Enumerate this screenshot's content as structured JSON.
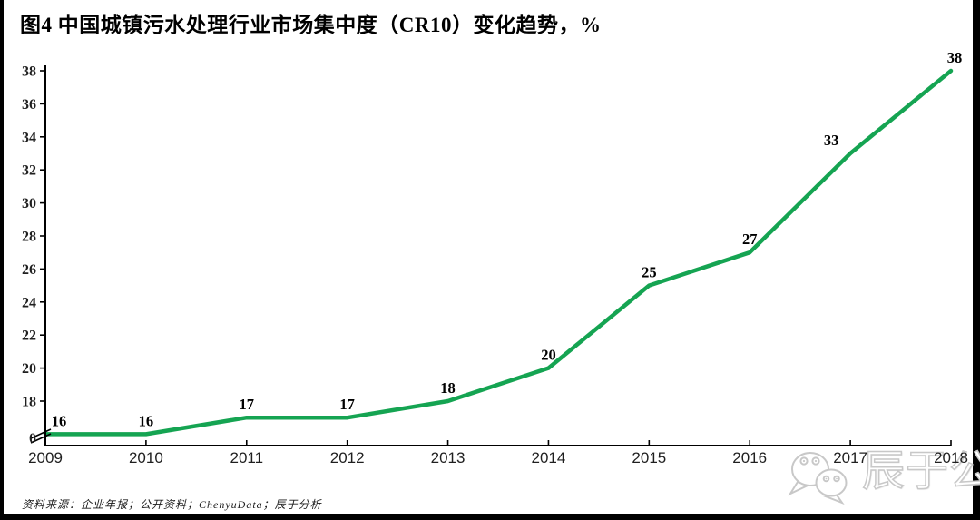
{
  "header": {
    "title": "图4 中国城镇污水处理行业市场集中度（CR10）变化趋势，%"
  },
  "chart_data": {
    "type": "line",
    "title": "图4 中国城镇污水处理行业市场集中度（CR10）变化趋势，%",
    "categories": [
      "2009",
      "2010",
      "2011",
      "2012",
      "2013",
      "2014",
      "2015",
      "2016",
      "2017",
      "2018"
    ],
    "series": [
      {
        "name": "CR10",
        "values": [
          16,
          16,
          17,
          17,
          18,
          20,
          25,
          27,
          33,
          38
        ]
      }
    ],
    "data_labels": [
      "16",
      "16",
      "17",
      "17",
      "18",
      "20",
      "25",
      "27",
      "33",
      "38"
    ],
    "unit": "%",
    "y_ticks": [
      0,
      18,
      20,
      22,
      24,
      26,
      28,
      30,
      32,
      34,
      36,
      38
    ],
    "ylim": [
      0,
      38
    ],
    "axis_break_above_zero": true,
    "grid": false,
    "legend": "none",
    "line_color": "#15A452",
    "axis_color": "#000000",
    "tick_label_color": "#1f1f1f",
    "data_label_color": "#000000"
  },
  "footer": {
    "source_note": "资料来源：企业年报；公开资料；ChenyuData；辰于分析"
  },
  "watermark": {
    "text": "辰于公司",
    "icon": "wechat-chat-bubbles-icon",
    "color": "#c8c8c8"
  }
}
